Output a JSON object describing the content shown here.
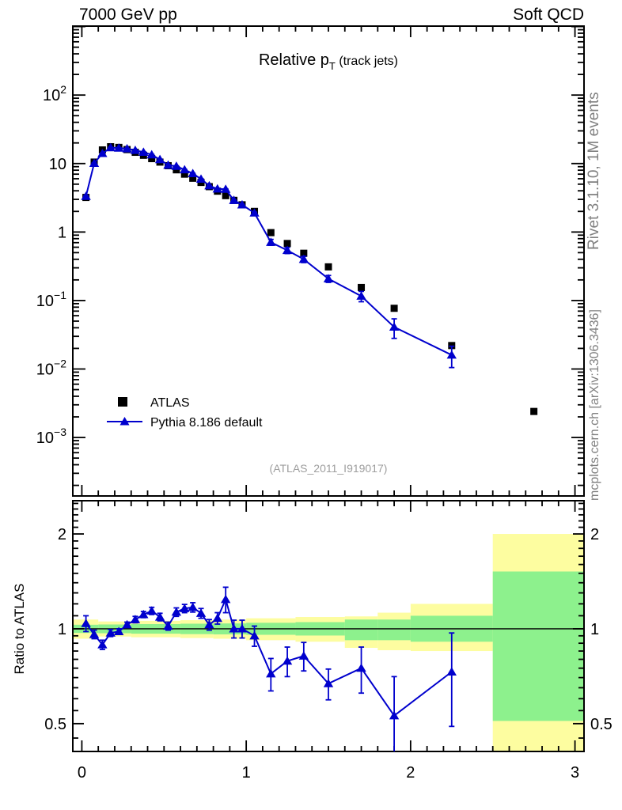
{
  "header": {
    "left": "7000 GeV pp",
    "right": "Soft QCD"
  },
  "side_texts": {
    "top_right": "Rivet 3.1.10,  1M events",
    "bottom_right": "mcplots.cern.ch [arXiv:1306.3436]"
  },
  "title": {
    "main": "Relative p",
    "sub": "T",
    "suffix": " (track jets)"
  },
  "watermark": "(ATLAS_2011_I919017)",
  "legend": [
    {
      "label": "ATLAS",
      "marker": "square"
    },
    {
      "label": "Pythia 8.186 default",
      "marker": "triangle-line"
    }
  ],
  "ratio_ylabel": "Ratio to ATLAS",
  "colors": {
    "data": "#000000",
    "mc": "#0000cd",
    "band_outer": "#fdfda0",
    "band_inner": "#8df18d",
    "frame": "#000000",
    "gray_text": "#808080",
    "watermark": "#9e9e9e"
  },
  "chart_data": {
    "type": "scatter",
    "title": "Relative pT (track jets)",
    "xlim": [
      -0.055,
      3.055
    ],
    "x_major_ticks": [
      0,
      1,
      2,
      3
    ],
    "x_minor_step": 0.1,
    "x_tick_labels": [
      {
        "v": 0,
        "label": "0"
      },
      {
        "v": 1,
        "label": "1"
      },
      {
        "v": 2,
        "label": "2"
      },
      {
        "v": 3,
        "label": "3"
      }
    ],
    "main_panel": {
      "ylog": true,
      "ylim": [
        0.00014,
        1016
      ],
      "y_tick_labels": [
        {
          "v": 100,
          "base": "10",
          "sup": "2"
        },
        {
          "v": 10,
          "base": "10",
          "sup": ""
        },
        {
          "v": 1,
          "base": "1",
          "sup": ""
        },
        {
          "v": 0.1,
          "base": "10",
          "sup": "−1"
        },
        {
          "v": 0.01,
          "base": "10",
          "sup": "−2"
        },
        {
          "v": 0.001,
          "base": "10",
          "sup": "−3"
        }
      ],
      "series": [
        {
          "name": "ATLAS",
          "marker": "square",
          "line": false,
          "x": [
            0.025,
            0.075,
            0.125,
            0.175,
            0.225,
            0.275,
            0.325,
            0.375,
            0.425,
            0.475,
            0.525,
            0.575,
            0.625,
            0.675,
            0.725,
            0.775,
            0.825,
            0.875,
            0.925,
            0.975,
            1.05,
            1.15,
            1.25,
            1.35,
            1.5,
            1.7,
            1.9,
            2.25,
            2.75
          ],
          "y": [
            3.2,
            10.5,
            15.8,
            17.6,
            17.2,
            16.0,
            14.6,
            13.2,
            11.8,
            10.5,
            9.3,
            8.1,
            7.0,
            6.1,
            5.3,
            4.6,
            3.95,
            3.4,
            2.9,
            2.5,
            2.0,
            0.98,
            0.68,
            0.49,
            0.31,
            0.155,
            0.077,
            0.022,
            0.0024
          ]
        },
        {
          "name": "Pythia 8.186 default",
          "marker": "triangle",
          "line": true,
          "x": [
            0.025,
            0.075,
            0.125,
            0.175,
            0.225,
            0.275,
            0.325,
            0.375,
            0.425,
            0.475,
            0.525,
            0.575,
            0.625,
            0.675,
            0.725,
            0.775,
            0.825,
            0.875,
            0.925,
            0.975,
            1.05,
            1.15,
            1.25,
            1.35,
            1.5,
            1.7,
            1.9,
            2.25
          ],
          "y": [
            3.33,
            10.08,
            14.06,
            17.07,
            16.86,
            16.48,
            15.62,
            14.65,
            13.45,
            11.45,
            9.49,
            9.15,
            8.12,
            7.14,
            5.94,
            4.74,
            4.27,
            4.22,
            2.9,
            2.5,
            1.9,
            0.71,
            0.54,
            0.4,
            0.208,
            0.116,
            0.041,
            0.016
          ],
          "yerr": [
            0.06,
            0.1,
            0.15,
            0.17,
            0.17,
            0.16,
            0.15,
            0.14,
            0.13,
            0.11,
            0.09,
            0.09,
            0.08,
            0.07,
            0.06,
            0.05,
            0.04,
            0.04,
            0.03,
            0.03,
            0.05,
            0.07,
            0.055,
            0.042,
            0.024,
            0.02,
            0.013,
            0.0055
          ]
        }
      ]
    },
    "ratio_panel": {
      "ylabel": "Ratio to ATLAS",
      "ylog": true,
      "ylim": [
        0.408,
        2.55
      ],
      "reference_line": 1,
      "y_ticks": [
        {
          "v": 0.5,
          "label": "0.5"
        },
        {
          "v": 1,
          "label": "1"
        },
        {
          "v": 2,
          "label": "2"
        }
      ],
      "y_minor_ticks": [
        0.45,
        0.55,
        0.6,
        0.65,
        0.7,
        0.75,
        0.8,
        0.85,
        0.9,
        0.95,
        1.1,
        1.2,
        1.3,
        1.4,
        1.5,
        1.6,
        1.7,
        1.8,
        1.9,
        2.1,
        2.2,
        2.3,
        2.4,
        2.5
      ],
      "points": {
        "x": [
          0.025,
          0.075,
          0.125,
          0.175,
          0.225,
          0.275,
          0.325,
          0.375,
          0.425,
          0.475,
          0.525,
          0.575,
          0.625,
          0.675,
          0.725,
          0.775,
          0.825,
          0.875,
          0.925,
          0.975,
          1.05,
          1.15,
          1.25,
          1.35,
          1.5,
          1.7,
          1.9,
          2.25
        ],
        "y": [
          1.04,
          0.96,
          0.89,
          0.97,
          0.98,
          1.03,
          1.07,
          1.11,
          1.14,
          1.09,
          1.02,
          1.13,
          1.16,
          1.17,
          1.12,
          1.03,
          1.08,
          1.24,
          1.0,
          1.0,
          0.95,
          0.72,
          0.79,
          0.82,
          0.67,
          0.75,
          0.53,
          0.73
        ],
        "yerr": [
          0.06,
          0.03,
          0.03,
          0.025,
          0.02,
          0.02,
          0.025,
          0.025,
          0.03,
          0.03,
          0.03,
          0.035,
          0.035,
          0.04,
          0.04,
          0.04,
          0.045,
          0.115,
          0.065,
          0.065,
          0.07,
          0.085,
          0.085,
          0.085,
          0.075,
          0.125,
          0.175,
          0.24
        ]
      },
      "bands": [
        {
          "x0": -0.055,
          "x1": 0.1,
          "outer": [
            0.93,
            1.07
          ],
          "inner": [
            0.97,
            1.03
          ]
        },
        {
          "x0": 0.1,
          "x1": 0.3,
          "outer": [
            0.945,
            1.055
          ],
          "inner": [
            0.968,
            1.032
          ]
        },
        {
          "x0": 0.3,
          "x1": 0.6,
          "outer": [
            0.94,
            1.06
          ],
          "inner": [
            0.965,
            1.035
          ]
        },
        {
          "x0": 0.6,
          "x1": 0.8,
          "outer": [
            0.935,
            1.065
          ],
          "inner": [
            0.962,
            1.038
          ]
        },
        {
          "x0": 0.8,
          "x1": 1.0,
          "outer": [
            0.93,
            1.07
          ],
          "inner": [
            0.96,
            1.04
          ]
        },
        {
          "x0": 1.0,
          "x1": 1.3,
          "outer": [
            0.92,
            1.08
          ],
          "inner": [
            0.957,
            1.045
          ]
        },
        {
          "x0": 1.3,
          "x1": 1.6,
          "outer": [
            0.91,
            1.09
          ],
          "inner": [
            0.952,
            1.05
          ]
        },
        {
          "x0": 1.6,
          "x1": 1.8,
          "outer": [
            0.87,
            1.095
          ],
          "inner": [
            0.92,
            1.07
          ]
        },
        {
          "x0": 1.8,
          "x1": 2.0,
          "outer": [
            0.855,
            1.125
          ],
          "inner": [
            0.92,
            1.07
          ]
        },
        {
          "x0": 2.0,
          "x1": 2.5,
          "outer": [
            0.85,
            1.2
          ],
          "inner": [
            0.91,
            1.1
          ]
        },
        {
          "x0": 2.5,
          "x1": 3.055,
          "outer": [
            0.4,
            2.0
          ],
          "inner": [
            0.51,
            1.52
          ]
        }
      ]
    }
  }
}
